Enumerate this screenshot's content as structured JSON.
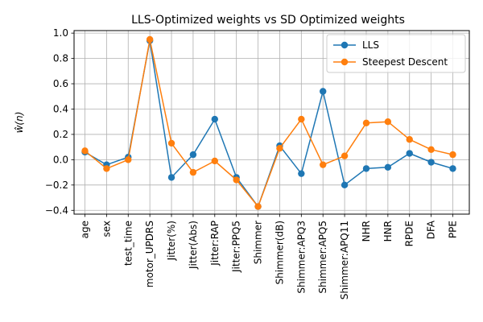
{
  "chart_data": {
    "type": "line",
    "title": "LLS-Optimized weights vs SD Optimized weights",
    "xlabel": "",
    "ylabel": "ŵ(n)",
    "categories": [
      "age",
      "sex",
      "test_time",
      "motor_UPDRS",
      "Jitter(%)",
      "Jitter(Abs)",
      "Jitter:RAP",
      "Jitter:PPQ5",
      "Shimmer",
      "Shimmer(dB)",
      "Shimmer:APQ3",
      "Shimmer:APQ5",
      "Shimmer:APQ11",
      "NHR",
      "HNR",
      "RPDE",
      "DFA",
      "PPE"
    ],
    "y_ticks": [
      "−0.4",
      "−0.2",
      "0.0",
      "0.2",
      "0.4",
      "0.6",
      "0.8",
      "1.0"
    ],
    "ylim": [
      -0.43,
      1.02
    ],
    "grid": true,
    "legend_position": "top-right",
    "series": [
      {
        "name": "LLS",
        "color": "#1f77b4",
        "values": [
          0.06,
          -0.04,
          0.02,
          0.94,
          -0.14,
          0.04,
          0.32,
          -0.14,
          -0.37,
          0.11,
          -0.11,
          0.54,
          -0.2,
          -0.07,
          -0.06,
          0.05,
          -0.02,
          -0.07
        ]
      },
      {
        "name": "Steepest Descent",
        "color": "#ff7f0e",
        "values": [
          0.07,
          -0.07,
          0.0,
          0.95,
          0.13,
          -0.1,
          -0.01,
          -0.16,
          -0.37,
          0.09,
          0.32,
          -0.04,
          0.03,
          0.29,
          0.3,
          0.16,
          0.08,
          0.04
        ]
      }
    ]
  }
}
